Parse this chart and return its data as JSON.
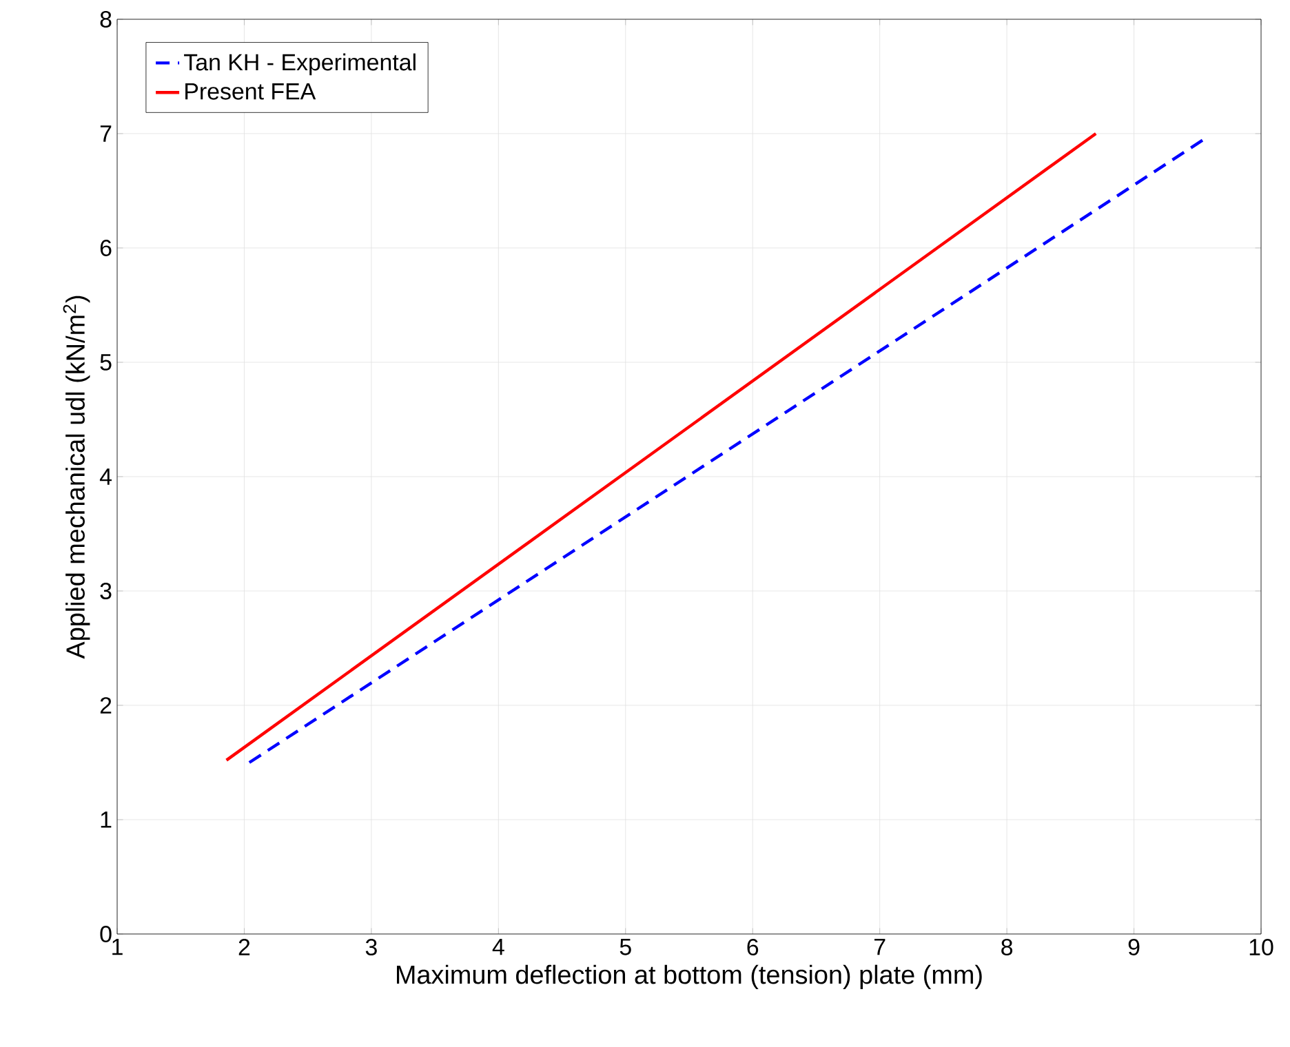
{
  "chart_data": {
    "type": "line",
    "xlabel": "Maximum deflection at bottom (tension) plate (mm)",
    "ylabel": "Applied mechanical udl (kN/m$^{2}$)",
    "xlim": [
      1,
      10
    ],
    "ylim": [
      0,
      8
    ],
    "xticks": [
      1,
      2,
      3,
      4,
      5,
      6,
      7,
      8,
      9,
      10
    ],
    "yticks": [
      0,
      1,
      2,
      3,
      4,
      5,
      6,
      7,
      8
    ],
    "grid": true,
    "legend": "top left",
    "marker": "none",
    "series": [
      {
        "name": "Tan KH - Experimental",
        "color": "#0000ff",
        "line_style": "dashed",
        "x": [
          2.04,
          9.55
        ],
        "values": [
          1.5,
          6.95
        ]
      },
      {
        "name": "Present FEA",
        "color": "#ff0000",
        "line_style": "solid",
        "x": [
          1.86,
          8.7
        ],
        "values": [
          1.52,
          7.0
        ]
      }
    ]
  }
}
